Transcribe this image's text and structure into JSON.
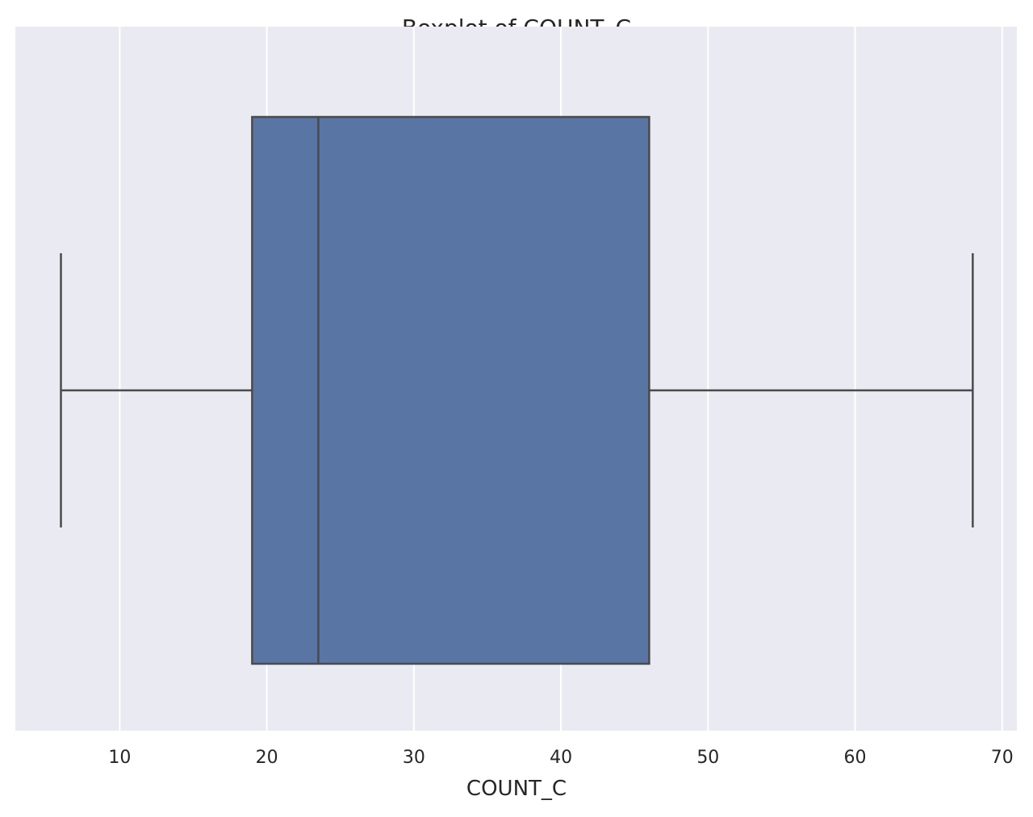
{
  "chart_data": {
    "type": "boxplot",
    "title": "Boxplot of COUNT_C",
    "xlabel": "COUNT_C",
    "ylabel": "",
    "orientation": "horizontal",
    "xlim": [
      2.9,
      71.0
    ],
    "xticks": [
      10,
      20,
      30,
      40,
      50,
      60,
      70
    ],
    "grid": true,
    "box": {
      "whisker_low": 6,
      "q1": 19,
      "median": 23.5,
      "q3": 46,
      "whisker_high": 68
    },
    "colors": {
      "plot_background": "#eaeaf2",
      "grid": "#ffffff",
      "box_fill": "#5975a4",
      "line": "#4a4a4a",
      "text": "#262626"
    }
  }
}
